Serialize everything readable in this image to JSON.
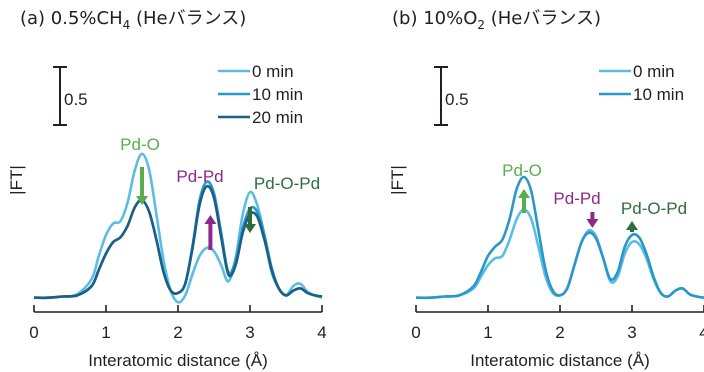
{
  "chart_data": [
    {
      "panel": "(a)",
      "title_main": "(a) 0.5%CH",
      "title_sub": "4",
      "title_tail": " (Heバランス)",
      "type": "line",
      "xlabel": "Interatomic distance (Å)",
      "ylabel": "|FT|",
      "xlim": [
        0,
        4
      ],
      "xticks": [
        "0",
        "1",
        "2",
        "3",
        "4"
      ],
      "scale_bar": "0.5",
      "legend_position": "top-right",
      "series": [
        {
          "name": "0 min",
          "color": "#5bbde3",
          "x": [
            0,
            0.2,
            0.4,
            0.6,
            0.8,
            0.9,
            1.0,
            1.1,
            1.2,
            1.3,
            1.4,
            1.5,
            1.6,
            1.7,
            1.8,
            1.9,
            2.0,
            2.1,
            2.2,
            2.3,
            2.4,
            2.5,
            2.6,
            2.7,
            2.8,
            2.9,
            3.0,
            3.1,
            3.2,
            3.3,
            3.4,
            3.5,
            3.6,
            3.7,
            3.8,
            3.9,
            4.0
          ],
          "y": [
            0.02,
            0.02,
            0.03,
            0.05,
            0.18,
            0.38,
            0.56,
            0.66,
            0.68,
            0.84,
            1.12,
            1.26,
            1.12,
            0.74,
            0.34,
            0.08,
            -0.02,
            0.04,
            0.22,
            0.38,
            0.45,
            0.42,
            0.3,
            0.16,
            0.36,
            0.74,
            0.93,
            0.82,
            0.56,
            0.24,
            0.1,
            0.04,
            0.12,
            0.14,
            0.07,
            0.04,
            0.02
          ]
        },
        {
          "name": "10 min",
          "color": "#2a97c9",
          "x": [
            0,
            0.2,
            0.4,
            0.6,
            0.8,
            0.9,
            1.0,
            1.1,
            1.2,
            1.3,
            1.4,
            1.5,
            1.6,
            1.7,
            1.8,
            1.9,
            2.0,
            2.1,
            2.2,
            2.3,
            2.4,
            2.5,
            2.6,
            2.7,
            2.8,
            2.9,
            3.0,
            3.1,
            3.2,
            3.3,
            3.4,
            3.5,
            3.6,
            3.7,
            3.8,
            3.9,
            4.0
          ],
          "y": [
            0.02,
            0.02,
            0.03,
            0.04,
            0.12,
            0.26,
            0.4,
            0.5,
            0.54,
            0.64,
            0.8,
            0.86,
            0.76,
            0.52,
            0.24,
            0.08,
            0.06,
            0.14,
            0.46,
            0.86,
            1.02,
            0.92,
            0.58,
            0.24,
            0.34,
            0.62,
            0.79,
            0.76,
            0.56,
            0.28,
            0.1,
            0.04,
            0.08,
            0.1,
            0.06,
            0.04,
            0.03
          ]
        },
        {
          "name": "20 min",
          "color": "#1b5e86",
          "x": [
            0,
            0.2,
            0.4,
            0.6,
            0.8,
            0.9,
            1.0,
            1.1,
            1.2,
            1.3,
            1.4,
            1.5,
            1.6,
            1.7,
            1.8,
            1.9,
            2.0,
            2.1,
            2.2,
            2.3,
            2.4,
            2.5,
            2.6,
            2.7,
            2.8,
            2.9,
            3.0,
            3.1,
            3.2,
            3.3,
            3.4,
            3.5,
            3.6,
            3.7,
            3.8,
            3.9,
            4.0
          ],
          "y": [
            0.02,
            0.02,
            0.03,
            0.04,
            0.12,
            0.26,
            0.4,
            0.5,
            0.54,
            0.64,
            0.8,
            0.86,
            0.76,
            0.52,
            0.24,
            0.08,
            0.06,
            0.14,
            0.44,
            0.82,
            0.98,
            0.88,
            0.54,
            0.22,
            0.3,
            0.58,
            0.74,
            0.72,
            0.52,
            0.26,
            0.1,
            0.04,
            0.08,
            0.1,
            0.06,
            0.04,
            0.03
          ]
        }
      ],
      "annotations": [
        {
          "text": "Pd-O",
          "x": 1.5,
          "color": "#5aad4e",
          "arrow": "down"
        },
        {
          "text": "Pd-Pd",
          "x": 2.45,
          "color": "#8b2a8c",
          "arrow": "up"
        },
        {
          "text": "Pd-O-Pd",
          "x": 3.0,
          "color": "#2c6e3f",
          "arrow": "down"
        }
      ]
    },
    {
      "panel": "(b)",
      "title_main": "(b) 10%O",
      "title_sub": "2",
      "title_tail": " (Heバランス)",
      "type": "line",
      "xlabel": "Interatomic distance (Å)",
      "ylabel": "|FT|",
      "xlim": [
        0,
        4
      ],
      "xticks": [
        "0",
        "1",
        "2",
        "3",
        "4"
      ],
      "scale_bar": "0.5",
      "legend_position": "top-right",
      "series": [
        {
          "name": "0 min",
          "color": "#5bbde3",
          "x": [
            0,
            0.2,
            0.4,
            0.6,
            0.8,
            0.9,
            1.0,
            1.1,
            1.2,
            1.3,
            1.4,
            1.5,
            1.6,
            1.7,
            1.8,
            1.9,
            2.0,
            2.1,
            2.2,
            2.3,
            2.4,
            2.5,
            2.6,
            2.7,
            2.8,
            2.9,
            3.0,
            3.1,
            3.2,
            3.3,
            3.4,
            3.5,
            3.6,
            3.7,
            3.8,
            3.9,
            4.0
          ],
          "y": [
            0.02,
            0.02,
            0.03,
            0.04,
            0.1,
            0.2,
            0.3,
            0.36,
            0.38,
            0.52,
            0.7,
            0.78,
            0.7,
            0.46,
            0.2,
            0.06,
            0.04,
            0.1,
            0.3,
            0.5,
            0.6,
            0.55,
            0.36,
            0.16,
            0.2,
            0.4,
            0.5,
            0.48,
            0.36,
            0.18,
            0.06,
            0.03,
            0.08,
            0.1,
            0.05,
            0.03,
            0.02
          ]
        },
        {
          "name": "10 min",
          "color": "#2a97c9",
          "x": [
            0,
            0.2,
            0.4,
            0.6,
            0.8,
            0.9,
            1.0,
            1.1,
            1.2,
            1.3,
            1.4,
            1.5,
            1.6,
            1.7,
            1.8,
            1.9,
            2.0,
            2.1,
            2.2,
            2.3,
            2.4,
            2.5,
            2.6,
            2.7,
            2.8,
            2.9,
            3.0,
            3.1,
            3.2,
            3.3,
            3.4,
            3.5,
            3.6,
            3.7,
            3.8,
            3.9,
            4.0
          ],
          "y": [
            0.02,
            0.02,
            0.03,
            0.04,
            0.12,
            0.24,
            0.38,
            0.46,
            0.52,
            0.7,
            0.96,
            1.06,
            0.94,
            0.6,
            0.26,
            0.08,
            0.04,
            0.1,
            0.3,
            0.5,
            0.58,
            0.53,
            0.36,
            0.18,
            0.24,
            0.46,
            0.56,
            0.54,
            0.4,
            0.2,
            0.06,
            0.03,
            0.08,
            0.1,
            0.05,
            0.03,
            0.02
          ]
        }
      ],
      "annotations": [
        {
          "text": "Pd-O",
          "x": 1.5,
          "color": "#5aad4e",
          "arrow": "up"
        },
        {
          "text": "Pd-Pd",
          "x": 2.45,
          "color": "#8b2a8c",
          "arrow": "down"
        },
        {
          "text": "Pd-O-Pd",
          "x": 3.0,
          "color": "#2c6e3f",
          "arrow": "up"
        }
      ]
    }
  ]
}
